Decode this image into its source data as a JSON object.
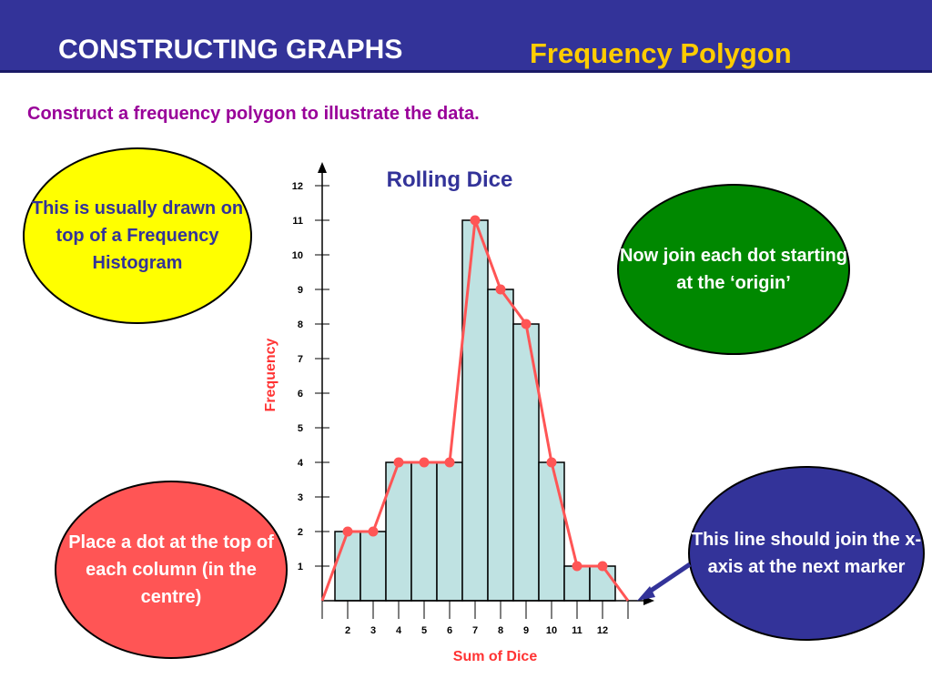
{
  "header": {
    "title": "CONSTRUCTING GRAPHS",
    "subtitle": "Frequency Polygon"
  },
  "instruction": "Construct a frequency polygon to illustrate the data.",
  "callouts": {
    "histogram_note": "This is usually drawn on top of a Frequency Histogram",
    "join_note": "Now join each dot starting at the ‘origin’",
    "dot_note": "Place a dot at the top of each column (in the centre)",
    "axis_note": "This line should join the x-axis at the next marker"
  },
  "colors": {
    "header_bg": "#333399",
    "subtitle": "#ffcc00",
    "instruction": "#990099",
    "bar_fill": "#bfe2e2",
    "polygon": "#ff5555",
    "axis_label": "#ff3333",
    "chart_title": "#333399"
  },
  "chart_data": {
    "type": "bar",
    "title": "Rolling Dice",
    "xlabel": "Sum of Dice",
    "ylabel": "Frequency",
    "categories": [
      "2",
      "3",
      "4",
      "5",
      "6",
      "7",
      "8",
      "9",
      "10",
      "11",
      "12"
    ],
    "values": [
      2,
      2,
      4,
      4,
      4,
      11,
      9,
      8,
      4,
      1,
      1
    ],
    "y_ticks": [
      1,
      2,
      3,
      4,
      5,
      6,
      7,
      8,
      9,
      10,
      11,
      12
    ],
    "ylim": [
      0,
      12
    ],
    "grid": false,
    "polygon": {
      "type": "line",
      "x": [
        1,
        2,
        3,
        4,
        5,
        6,
        7,
        8,
        9,
        10,
        11,
        12,
        13
      ],
      "y": [
        0,
        2,
        2,
        4,
        4,
        4,
        11,
        9,
        8,
        4,
        1,
        1,
        0
      ]
    }
  }
}
